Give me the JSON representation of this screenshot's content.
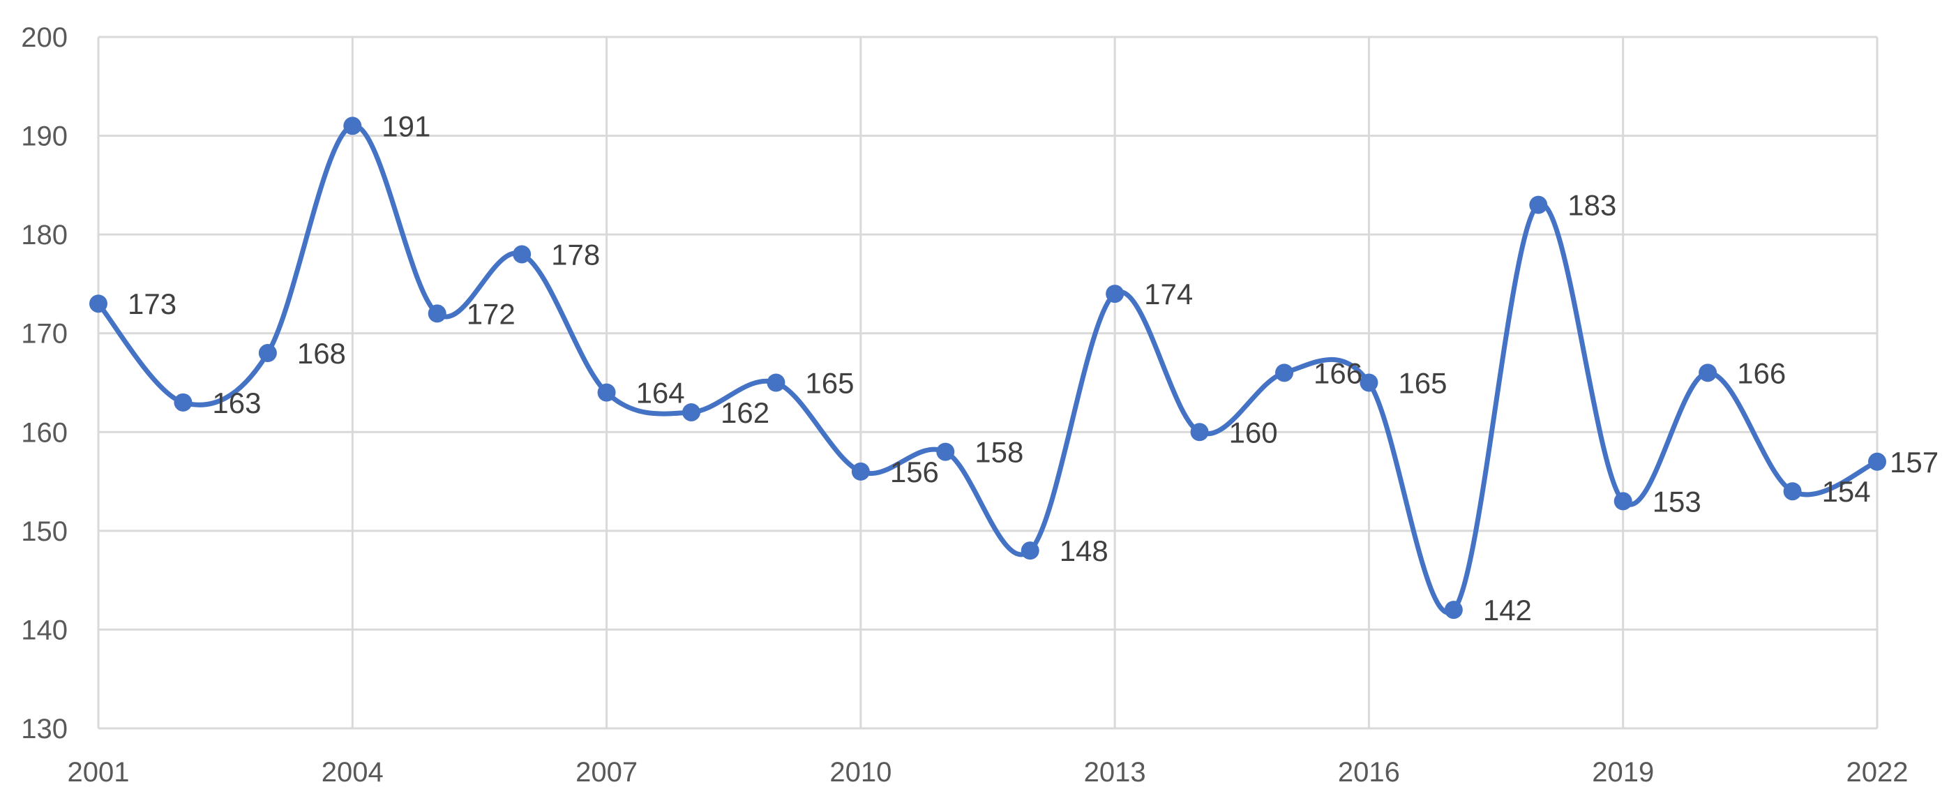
{
  "chart_data": {
    "type": "line",
    "smooth": true,
    "x": [
      2001,
      2002,
      2003,
      2004,
      2005,
      2006,
      2007,
      2008,
      2009,
      2010,
      2011,
      2012,
      2013,
      2014,
      2015,
      2016,
      2017,
      2018,
      2019,
      2020,
      2021,
      2022
    ],
    "series": [
      {
        "values": [
          173,
          163,
          168,
          191,
          172,
          178,
          164,
          162,
          165,
          156,
          158,
          148,
          174,
          160,
          166,
          165,
          142,
          183,
          153,
          166,
          154,
          157
        ]
      }
    ],
    "x_ticks": [
      "2001",
      "2004",
      "2007",
      "2010",
      "2013",
      "2016",
      "2019",
      "2022"
    ],
    "y_ticks": [
      "130",
      "140",
      "150",
      "160",
      "170",
      "180",
      "190",
      "200"
    ],
    "xlim": [
      2001,
      2022
    ],
    "ylim": [
      130,
      200
    ],
    "grid": true,
    "data_labels": true,
    "legend": "none",
    "colors": {
      "line": "#4472c4",
      "grid": "#d9d9d9",
      "tick_text": "#595959",
      "label_text": "#404040"
    }
  }
}
